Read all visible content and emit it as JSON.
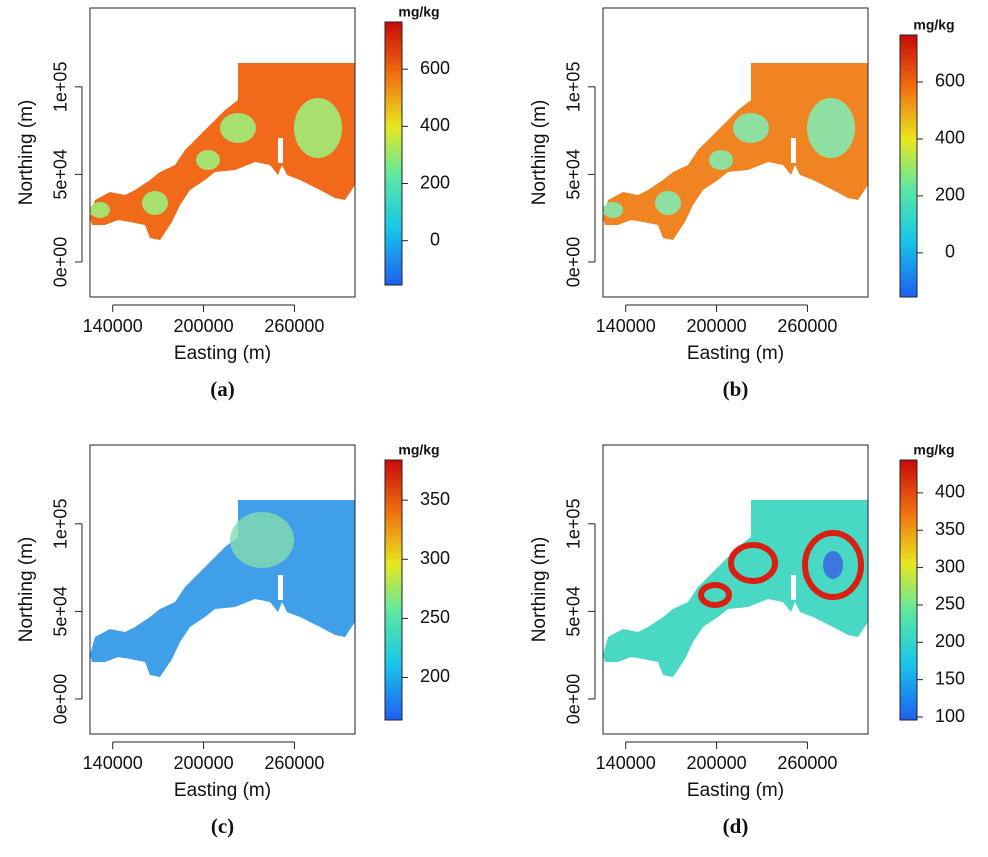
{
  "panels": [
    {
      "caption": "(a)",
      "x_label": "Easting (m)",
      "y_label": "Northing (m)",
      "xlim": [
        125000,
        300000
      ],
      "xticks": [
        140000,
        200000,
        260000
      ],
      "ylim": [
        -20000,
        145000
      ],
      "yticks": [
        {
          "value": 0,
          "label": "0e+00"
        },
        {
          "value": 50000,
          "label": "5e+04"
        },
        {
          "value": 100000,
          "label": "1e+05"
        }
      ],
      "colorbar": {
        "unit": "mg/kg",
        "range": [
          -155,
          765
        ],
        "ticks": [
          0,
          200,
          400,
          600
        ]
      }
    },
    {
      "caption": "(b)",
      "x_label": "Easting (m)",
      "y_label": "Northing (m)",
      "xlim": [
        125000,
        300000
      ],
      "xticks": [
        140000,
        200000,
        260000
      ],
      "ylim": [
        -20000,
        145000
      ],
      "yticks": [
        {
          "value": 0,
          "label": "0e+00"
        },
        {
          "value": 50000,
          "label": "5e+04"
        },
        {
          "value": 100000,
          "label": "1e+05"
        }
      ],
      "colorbar": {
        "unit": "mg/kg",
        "range": [
          -155,
          765
        ],
        "ticks": [
          0,
          200,
          400,
          600
        ]
      }
    },
    {
      "caption": "(c)",
      "x_label": "Easting (m)",
      "y_label": "Northing (m)",
      "xlim": [
        125000,
        300000
      ],
      "xticks": [
        140000,
        200000,
        260000
      ],
      "ylim": [
        -20000,
        145000
      ],
      "yticks": [
        {
          "value": 0,
          "label": "0e+00"
        },
        {
          "value": 50000,
          "label": "5e+04"
        },
        {
          "value": 100000,
          "label": "1e+05"
        }
      ],
      "colorbar": {
        "unit": "mg/kg",
        "range": [
          164,
          384
        ],
        "ticks": [
          200,
          250,
          300,
          350
        ]
      }
    },
    {
      "caption": "(d)",
      "x_label": "Easting (m)",
      "y_label": "Northing (m)",
      "xlim": [
        125000,
        300000
      ],
      "xticks": [
        140000,
        200000,
        260000
      ],
      "ylim": [
        -20000,
        145000
      ],
      "yticks": [
        {
          "value": 0,
          "label": "0e+00"
        },
        {
          "value": 50000,
          "label": "5e+04"
        },
        {
          "value": 100000,
          "label": "1e+05"
        }
      ],
      "colorbar": {
        "unit": "mg/kg",
        "range": [
          96,
          444
        ],
        "ticks": [
          100,
          150,
          200,
          250,
          300,
          350,
          400
        ]
      }
    }
  ]
}
